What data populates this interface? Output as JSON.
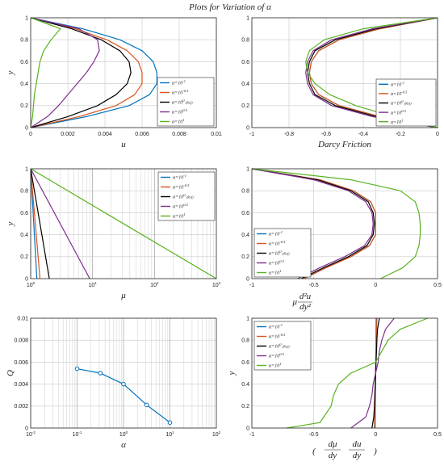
{
  "title": "Plots for Variation of α",
  "colors": {
    "blue": "#0072bd",
    "orange": "#d95319",
    "black": "#000000",
    "purple": "#7e2f8e",
    "green": "#57b31d"
  },
  "legend_labels": [
    {
      "base": "α=10",
      "sup": "-1",
      "suffix": ""
    },
    {
      "base": "α=10",
      "sup": "-0.5",
      "suffix": ""
    },
    {
      "base": "α=10",
      "sup": "0",
      "suffix": " (Ref)"
    },
    {
      "base": "α=10",
      "sup": "0.5",
      "suffix": ""
    },
    {
      "base": "α=10",
      "sup": "1",
      "suffix": ""
    }
  ],
  "chart_data": [
    {
      "id": "u",
      "type": "line",
      "xlabel": "u",
      "ylabel": "y",
      "xlim": [
        0,
        0.01
      ],
      "ylim": [
        0,
        1
      ],
      "xticks": [
        "0",
        "0.002",
        "0.004",
        "0.006",
        "0.008",
        "0.01"
      ],
      "yticks": [
        "0",
        "0.2",
        "0.4",
        "0.6",
        "0.8",
        "1"
      ],
      "grid": true,
      "legend": "right",
      "series": [
        {
          "color": "blue",
          "x": [
            0,
            0.003,
            0.0053,
            0.0064,
            0.0068,
            0.0068,
            0.0066,
            0.006,
            0.0048,
            0.0028,
            0
          ],
          "y": [
            0,
            0.1,
            0.2,
            0.3,
            0.4,
            0.5,
            0.6,
            0.7,
            0.8,
            0.9,
            1
          ]
        },
        {
          "color": "orange",
          "x": [
            0,
            0.0026,
            0.0046,
            0.0056,
            0.006,
            0.006,
            0.0058,
            0.0052,
            0.0041,
            0.0024,
            0
          ],
          "y": [
            0,
            0.1,
            0.2,
            0.3,
            0.4,
            0.5,
            0.6,
            0.7,
            0.8,
            0.9,
            1
          ]
        },
        {
          "color": "black",
          "x": [
            0,
            0.002,
            0.0036,
            0.0046,
            0.0052,
            0.0054,
            0.0053,
            0.0048,
            0.0038,
            0.0022,
            0
          ],
          "y": [
            0,
            0.1,
            0.2,
            0.3,
            0.4,
            0.5,
            0.6,
            0.7,
            0.8,
            0.9,
            1
          ]
        },
        {
          "color": "purple",
          "x": [
            0,
            0.0009,
            0.0015,
            0.002,
            0.0025,
            0.003,
            0.0034,
            0.0037,
            0.0036,
            0.0026,
            0
          ],
          "y": [
            0,
            0.1,
            0.2,
            0.3,
            0.4,
            0.5,
            0.6,
            0.7,
            0.8,
            0.9,
            1
          ]
        },
        {
          "color": "green",
          "x": [
            0,
            0.0001,
            0.00015,
            0.0002,
            0.0003,
            0.0004,
            0.0005,
            0.0007,
            0.0011,
            0.0016,
            0
          ],
          "y": [
            0,
            0.1,
            0.2,
            0.3,
            0.4,
            0.5,
            0.6,
            0.7,
            0.8,
            0.9,
            1
          ]
        }
      ]
    },
    {
      "id": "darcy",
      "type": "line",
      "xlabel": "Darcy Friction",
      "ylabel": "",
      "xlim": [
        -1,
        0
      ],
      "ylim": [
        0,
        1
      ],
      "xticks": [
        "-1",
        "-0.8",
        "-0.6",
        "-0.4",
        "-0.2",
        "0"
      ],
      "yticks": [
        "0",
        "0.2",
        "0.4",
        "0.6",
        "0.8",
        "1"
      ],
      "grid": true,
      "legend": "bottom-right",
      "series": [
        {
          "color": "blue",
          "x": [
            0,
            -0.31,
            -0.53,
            -0.64,
            -0.68,
            -0.69,
            -0.68,
            -0.64,
            -0.53,
            -0.31,
            0
          ],
          "y": [
            0,
            0.1,
            0.2,
            0.3,
            0.4,
            0.5,
            0.6,
            0.7,
            0.8,
            0.9,
            1
          ]
        },
        {
          "color": "orange",
          "x": [
            0,
            -0.31,
            -0.53,
            -0.64,
            -0.68,
            -0.69,
            -0.68,
            -0.64,
            -0.53,
            -0.31,
            0
          ],
          "y": [
            0,
            0.1,
            0.2,
            0.3,
            0.4,
            0.5,
            0.6,
            0.7,
            0.8,
            0.9,
            1
          ]
        },
        {
          "color": "black",
          "x": [
            0,
            -0.33,
            -0.55,
            -0.66,
            -0.69,
            -0.7,
            -0.69,
            -0.66,
            -0.55,
            -0.33,
            0
          ],
          "y": [
            0,
            0.1,
            0.2,
            0.3,
            0.4,
            0.5,
            0.6,
            0.7,
            0.8,
            0.9,
            1
          ]
        },
        {
          "color": "purple",
          "x": [
            0,
            -0.35,
            -0.57,
            -0.67,
            -0.7,
            -0.71,
            -0.7,
            -0.67,
            -0.57,
            -0.35,
            0
          ],
          "y": [
            0,
            0.1,
            0.2,
            0.3,
            0.4,
            0.5,
            0.6,
            0.7,
            0.8,
            0.9,
            1
          ]
        },
        {
          "color": "green",
          "x": [
            0,
            -0.24,
            -0.44,
            -0.58,
            -0.66,
            -0.7,
            -0.71,
            -0.69,
            -0.61,
            -0.4,
            0
          ],
          "y": [
            0,
            0.1,
            0.2,
            0.3,
            0.4,
            0.5,
            0.6,
            0.7,
            0.8,
            0.9,
            1
          ]
        }
      ]
    },
    {
      "id": "mu",
      "type": "line",
      "xscale": "log",
      "xlabel": "μ",
      "ylabel": "y",
      "xlim": [
        1,
        1000
      ],
      "ylim": [
        0,
        1
      ],
      "xticks": [
        "10",
        "10",
        "10",
        "10"
      ],
      "xtick_sups": [
        "0",
        "1",
        "2",
        "3"
      ],
      "xtick_values": [
        1,
        10,
        100,
        1000
      ],
      "yticks": [
        "0",
        "0.2",
        "0.4",
        "0.6",
        "0.8",
        "1"
      ],
      "grid": true,
      "legend": "top-right",
      "series": [
        {
          "color": "blue",
          "x": [
            1.2589,
            1.0
          ],
          "y": [
            0,
            1
          ]
        },
        {
          "color": "orange",
          "x": [
            1.4125,
            1.0
          ],
          "y": [
            0,
            1
          ]
        },
        {
          "color": "black",
          "x": [
            2.0,
            1.0
          ],
          "y": [
            0,
            1
          ]
        },
        {
          "color": "purple",
          "x": [
            9.0,
            1.0
          ],
          "y": [
            0,
            1
          ]
        },
        {
          "color": "green",
          "x": [
            1000,
            1
          ],
          "y": [
            0,
            1
          ]
        }
      ]
    },
    {
      "id": "mu-d2u",
      "type": "line",
      "xlabel": "μ d²u/dy²",
      "ylabel": "",
      "xlim": [
        -1,
        0.5
      ],
      "ylim": [
        0,
        1
      ],
      "xticks": [
        "-1",
        "-0.5",
        "0",
        "0.5"
      ],
      "yticks": [
        "0",
        "0.2",
        "0.4",
        "0.6",
        "0.8",
        "1"
      ],
      "grid": true,
      "legend": "bottom-left",
      "series": [
        {
          "color": "blue",
          "x": [
            -0.58,
            -0.4,
            -0.2,
            -0.05,
            0.0,
            0.0,
            0.0,
            -0.04,
            -0.18,
            -0.45,
            -1.0
          ],
          "y": [
            0,
            0.1,
            0.2,
            0.3,
            0.4,
            0.5,
            0.6,
            0.7,
            0.8,
            0.9,
            1
          ]
        },
        {
          "color": "orange",
          "x": [
            -0.58,
            -0.4,
            -0.2,
            -0.05,
            0.0,
            0.0,
            0.0,
            -0.04,
            -0.18,
            -0.45,
            -1.0
          ],
          "y": [
            0,
            0.1,
            0.2,
            0.3,
            0.4,
            0.5,
            0.6,
            0.7,
            0.8,
            0.9,
            1
          ]
        },
        {
          "color": "black",
          "x": [
            -0.6,
            -0.42,
            -0.22,
            -0.07,
            -0.02,
            -0.01,
            -0.02,
            -0.06,
            -0.2,
            -0.47,
            -1.0
          ],
          "y": [
            0,
            0.1,
            0.2,
            0.3,
            0.4,
            0.5,
            0.6,
            0.7,
            0.8,
            0.9,
            1
          ]
        },
        {
          "color": "purple",
          "x": [
            -0.63,
            -0.45,
            -0.25,
            -0.09,
            -0.03,
            -0.02,
            -0.03,
            -0.08,
            -0.22,
            -0.5,
            -1.0
          ],
          "y": [
            0,
            0.1,
            0.2,
            0.3,
            0.4,
            0.5,
            0.6,
            0.7,
            0.8,
            0.9,
            1
          ]
        },
        {
          "color": "green",
          "x": [
            0.04,
            0.22,
            0.32,
            0.35,
            0.36,
            0.36,
            0.35,
            0.32,
            0.2,
            -0.2,
            -1.0
          ],
          "y": [
            0,
            0.1,
            0.2,
            0.3,
            0.4,
            0.5,
            0.6,
            0.7,
            0.8,
            0.9,
            1
          ]
        }
      ]
    },
    {
      "id": "Q",
      "type": "line",
      "xscale": "log",
      "xlabel": "α",
      "ylabel": "Q",
      "xlim": [
        0.01,
        100
      ],
      "ylim": [
        0,
        0.01
      ],
      "xticks": [
        "10",
        "10",
        "10",
        "10",
        "10"
      ],
      "xtick_sups": [
        "-2",
        "-1",
        "0",
        "1",
        "2"
      ],
      "xtick_values": [
        0.01,
        0.1,
        1,
        10,
        100
      ],
      "yticks": [
        "0",
        "0.002",
        "0.004",
        "0.006",
        "0.008",
        "0.01"
      ],
      "grid": true,
      "markers": true,
      "series": [
        {
          "color": "blue",
          "x": [
            0.1,
            0.3162,
            1,
            3.162,
            10
          ],
          "y": [
            0.0054,
            0.005,
            0.004,
            0.0021,
            0.0005
          ]
        }
      ]
    },
    {
      "id": "dmu-du",
      "type": "line",
      "xlabel": "(dμ/dy · du/dy)",
      "ylabel": "y",
      "xlim": [
        -1,
        0.5
      ],
      "ylim": [
        0,
        1
      ],
      "xticks": [
        "-1",
        "-0.5",
        "0",
        "0.5"
      ],
      "yticks": [
        "0",
        "0.2",
        "0.4",
        "0.6",
        "0.8",
        "1"
      ],
      "grid": true,
      "legend": "top-left",
      "series": [
        {
          "color": "blue",
          "x": [
            -0.005,
            -0.004,
            -0.003,
            -0.002,
            -0.001,
            0,
            0.001,
            0.002,
            0.003,
            0.004,
            0.005
          ],
          "y": [
            0,
            0.1,
            0.2,
            0.3,
            0.4,
            0.5,
            0.6,
            0.7,
            0.8,
            0.9,
            1
          ]
        },
        {
          "color": "orange",
          "x": [
            -0.01,
            -0.008,
            -0.006,
            -0.004,
            -0.002,
            0,
            0.002,
            0.004,
            0.006,
            0.008,
            0.01
          ],
          "y": [
            0,
            0.1,
            0.2,
            0.3,
            0.4,
            0.5,
            0.6,
            0.7,
            0.8,
            0.9,
            1
          ]
        },
        {
          "color": "black",
          "x": [
            -0.03,
            -0.015,
            -0.01,
            -0.007,
            -0.003,
            0,
            0.003,
            0.007,
            0.01,
            0.015,
            0.03
          ],
          "y": [
            0,
            0.1,
            0.2,
            0.3,
            0.4,
            0.5,
            0.6,
            0.7,
            0.8,
            0.9,
            1
          ]
        },
        {
          "color": "purple",
          "x": [
            -0.2,
            -0.08,
            -0.05,
            -0.03,
            -0.02,
            0,
            0.02,
            0.03,
            0.05,
            0.08,
            0.15
          ],
          "y": [
            0,
            0.1,
            0.2,
            0.3,
            0.4,
            0.5,
            0.6,
            0.7,
            0.8,
            0.9,
            1
          ]
        },
        {
          "color": "green",
          "x": [
            -0.72,
            -0.45,
            -0.36,
            -0.34,
            -0.3,
            -0.2,
            0.0,
            0.05,
            0.1,
            0.2,
            0.42
          ],
          "y": [
            0,
            0.05,
            0.2,
            0.3,
            0.4,
            0.5,
            0.6,
            0.7,
            0.8,
            0.9,
            1
          ]
        }
      ]
    }
  ]
}
